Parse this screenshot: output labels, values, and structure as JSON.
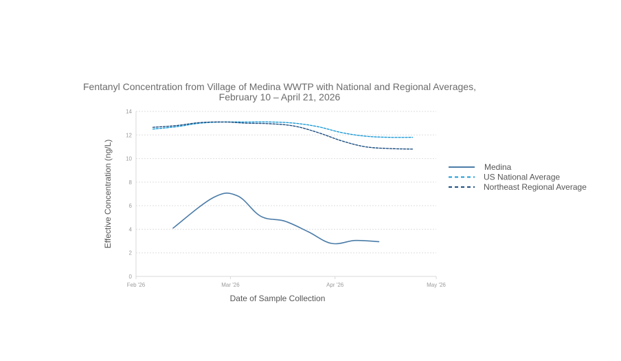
{
  "chart_data": {
    "type": "line",
    "title_line1": "Fentanyl Concentration from Village of Medina WWTP with National and Regional Averages,",
    "title_line2": "February 10 – April 21, 2026",
    "xlabel": "Date of Sample Collection",
    "ylabel": "Effective Concentration (ng/L)",
    "xlim": [
      "2026-02-01",
      "2026-05-01"
    ],
    "ylim": [
      0,
      14
    ],
    "y_ticks": [
      0,
      2,
      4,
      6,
      8,
      10,
      12,
      14
    ],
    "x_ticks": [
      {
        "date": "2026-02-01",
        "label": "Feb '26"
      },
      {
        "date": "2026-03-01",
        "label": "Mar '26"
      },
      {
        "date": "2026-04-01",
        "label": "Apr '26"
      },
      {
        "date": "2026-05-01",
        "label": "May '26"
      }
    ],
    "grid": true,
    "legend_position": "right",
    "series": [
      {
        "name": "Medina",
        "color": "#4a7ba7",
        "style": "solid",
        "points": [
          {
            "x": "2026-02-12",
            "y": 4.1
          },
          {
            "x": "2026-02-24",
            "y": 6.7
          },
          {
            "x": "2026-03-03",
            "y": 6.85
          },
          {
            "x": "2026-03-10",
            "y": 5.1
          },
          {
            "x": "2026-03-17",
            "y": 4.7
          },
          {
            "x": "2026-03-24",
            "y": 3.8
          },
          {
            "x": "2026-03-31",
            "y": 2.8
          },
          {
            "x": "2026-04-07",
            "y": 3.05
          },
          {
            "x": "2026-04-14",
            "y": 2.95
          }
        ]
      },
      {
        "name": "US National Average",
        "color": "#1a9ad6",
        "style": "dashed",
        "points": [
          {
            "x": "2026-02-06",
            "y": 12.5
          },
          {
            "x": "2026-02-13",
            "y": 12.7
          },
          {
            "x": "2026-02-20",
            "y": 13.0
          },
          {
            "x": "2026-02-27",
            "y": 13.1
          },
          {
            "x": "2026-03-06",
            "y": 13.1
          },
          {
            "x": "2026-03-13",
            "y": 13.1
          },
          {
            "x": "2026-03-20",
            "y": 13.0
          },
          {
            "x": "2026-03-27",
            "y": 12.7
          },
          {
            "x": "2026-04-03",
            "y": 12.2
          },
          {
            "x": "2026-04-10",
            "y": 11.9
          },
          {
            "x": "2026-04-17",
            "y": 11.8
          },
          {
            "x": "2026-04-24",
            "y": 11.8
          }
        ]
      },
      {
        "name": "Northeast Regional Average",
        "color": "#1c4e80",
        "style": "dashed",
        "points": [
          {
            "x": "2026-02-06",
            "y": 12.65
          },
          {
            "x": "2026-02-13",
            "y": 12.8
          },
          {
            "x": "2026-02-20",
            "y": 13.05
          },
          {
            "x": "2026-02-27",
            "y": 13.1
          },
          {
            "x": "2026-03-06",
            "y": 13.0
          },
          {
            "x": "2026-03-13",
            "y": 12.95
          },
          {
            "x": "2026-03-20",
            "y": 12.75
          },
          {
            "x": "2026-03-27",
            "y": 12.2
          },
          {
            "x": "2026-04-03",
            "y": 11.5
          },
          {
            "x": "2026-04-10",
            "y": 11.0
          },
          {
            "x": "2026-04-17",
            "y": 10.85
          },
          {
            "x": "2026-04-24",
            "y": 10.8
          }
        ]
      }
    ]
  }
}
